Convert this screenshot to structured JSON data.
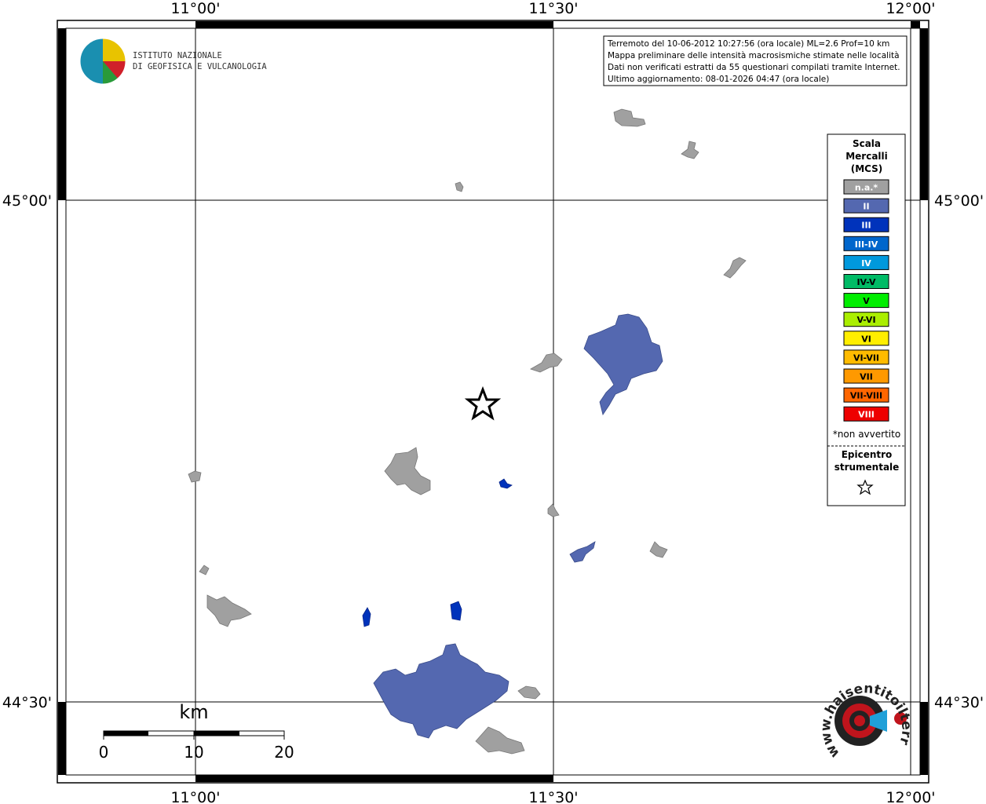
{
  "map": {
    "lon_labels": [
      "11°00'",
      "11°30'",
      "12°00'"
    ],
    "lat_labels": [
      "45°00'",
      "44°30'"
    ],
    "info_lines": [
      "Terremoto del 10-06-2012 10:27:56 (ora locale) ML=2.6 Prof=10 km",
      "Mappa preliminare delle intensità macrosismiche stimate nelle località",
      "Dati non verificati estratti da 55 questionari compilati tramite Internet.",
      "Ultimo aggiornamento: 08-01-2026 04:47 (ora locale)"
    ],
    "logo_lines": [
      "ISTITUTO NAZIONALE",
      "DI GEOFISICA E VULCANOLOGIA"
    ],
    "legend": {
      "title_lines": [
        "Scala",
        "Mercalli",
        "(MCS)"
      ],
      "items": [
        {
          "label": "n.a.*",
          "color": "#a0a0a0",
          "text_color": "#ffffff"
        },
        {
          "label": "II",
          "color": "#5468b0",
          "text_color": "#ffffff"
        },
        {
          "label": "III",
          "color": "#0033bb",
          "text_color": "#ffffff"
        },
        {
          "label": "III-IV",
          "color": "#0066cc",
          "text_color": "#ffffff"
        },
        {
          "label": "IV",
          "color": "#0099dd",
          "text_color": "#ffffff"
        },
        {
          "label": "IV-V",
          "color": "#00bb66",
          "text_color": "#000000"
        },
        {
          "label": "V",
          "color": "#00ee00",
          "text_color": "#000000"
        },
        {
          "label": "V-VI",
          "color": "#aaee00",
          "text_color": "#000000"
        },
        {
          "label": "VI",
          "color": "#ffee00",
          "text_color": "#000000"
        },
        {
          "label": "VI-VII",
          "color": "#ffbb00",
          "text_color": "#000000"
        },
        {
          "label": "VII",
          "color": "#ff9900",
          "text_color": "#000000"
        },
        {
          "label": "VII-VIII",
          "color": "#ff6600",
          "text_color": "#000000"
        },
        {
          "label": "VIII",
          "color": "#ee0000",
          "text_color": "#ffffff"
        }
      ],
      "note": "*non avvertito",
      "epicenter_lines": [
        "Epicentro",
        "strumentale"
      ]
    },
    "scale_bar": {
      "unit": "km",
      "labels": [
        "0",
        "10",
        "20"
      ]
    },
    "site_logo": "www.haisentitoilterremoto.it"
  }
}
